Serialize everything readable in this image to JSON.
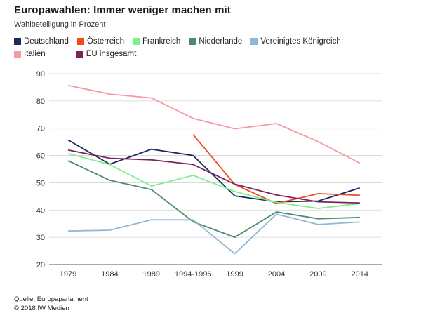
{
  "chart_data": {
    "type": "line",
    "title": "Europawahlen: Immer weniger machen mit",
    "subtitle": "Wahlbeteiligung in Prozent",
    "categories": [
      "1979",
      "1984",
      "1989",
      "1994-1996",
      "1999",
      "2004",
      "2009",
      "2014"
    ],
    "y_ticks": [
      "90",
      "80",
      "70",
      "60",
      "50",
      "40",
      "30",
      "20"
    ],
    "ylim": [
      20,
      90
    ],
    "xlabel": "",
    "ylabel": "",
    "series": [
      {
        "name": "Deutschland",
        "color": "#1b2a5e",
        "values": [
          65.7,
          56.8,
          62.3,
          60.0,
          45.2,
          43.0,
          43.3,
          48.1
        ]
      },
      {
        "name": "Österreich",
        "color": "#f04a1f",
        "values": [
          null,
          null,
          null,
          67.7,
          49.4,
          42.4,
          46.0,
          45.4
        ]
      },
      {
        "name": "Frankreich",
        "color": "#7ff08c",
        "values": [
          60.7,
          56.7,
          48.8,
          52.7,
          46.8,
          42.8,
          40.6,
          42.4
        ]
      },
      {
        "name": "Niederlande",
        "color": "#4d8a6e",
        "values": [
          58.1,
          50.9,
          47.5,
          35.7,
          30.0,
          39.3,
          36.8,
          37.3
        ]
      },
      {
        "name": "Vereinigtes Königreich",
        "color": "#8fb8d8",
        "values": [
          32.3,
          32.6,
          36.4,
          36.4,
          24.0,
          38.5,
          34.7,
          35.6
        ]
      },
      {
        "name": "Italien",
        "color": "#f49aa0",
        "values": [
          85.7,
          82.5,
          81.1,
          73.6,
          69.8,
          71.7,
          65.1,
          57.2
        ]
      },
      {
        "name": "EU insgesamt",
        "color": "#7b2459",
        "values": [
          62.0,
          59.0,
          58.4,
          56.7,
          49.5,
          45.5,
          43.0,
          42.6
        ]
      }
    ]
  },
  "footer": {
    "source": "Quelle: Europaparlament",
    "copyright": "© 2018 IW Medien"
  }
}
